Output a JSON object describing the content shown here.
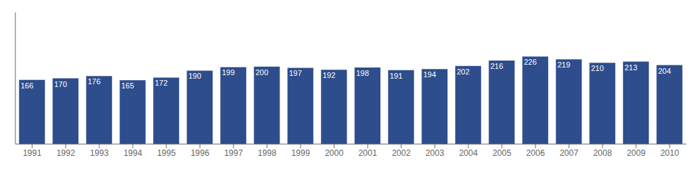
{
  "chart_data": {
    "type": "bar",
    "categories": [
      "1991",
      "1992",
      "1993",
      "1994",
      "1995",
      "1996",
      "1997",
      "1998",
      "1999",
      "2000",
      "2001",
      "2002",
      "2003",
      "2004",
      "2005",
      "2006",
      "2007",
      "2008",
      "2009",
      "2010"
    ],
    "values": [
      166,
      170,
      176,
      165,
      172,
      190,
      199,
      200,
      197,
      192,
      198,
      191,
      194,
      202,
      216,
      226,
      219,
      210,
      213,
      204
    ],
    "color": "#2e4d8c",
    "ylim": [
      0,
      340
    ],
    "grid": false,
    "data_labels": true,
    "tick_labels": "x"
  }
}
